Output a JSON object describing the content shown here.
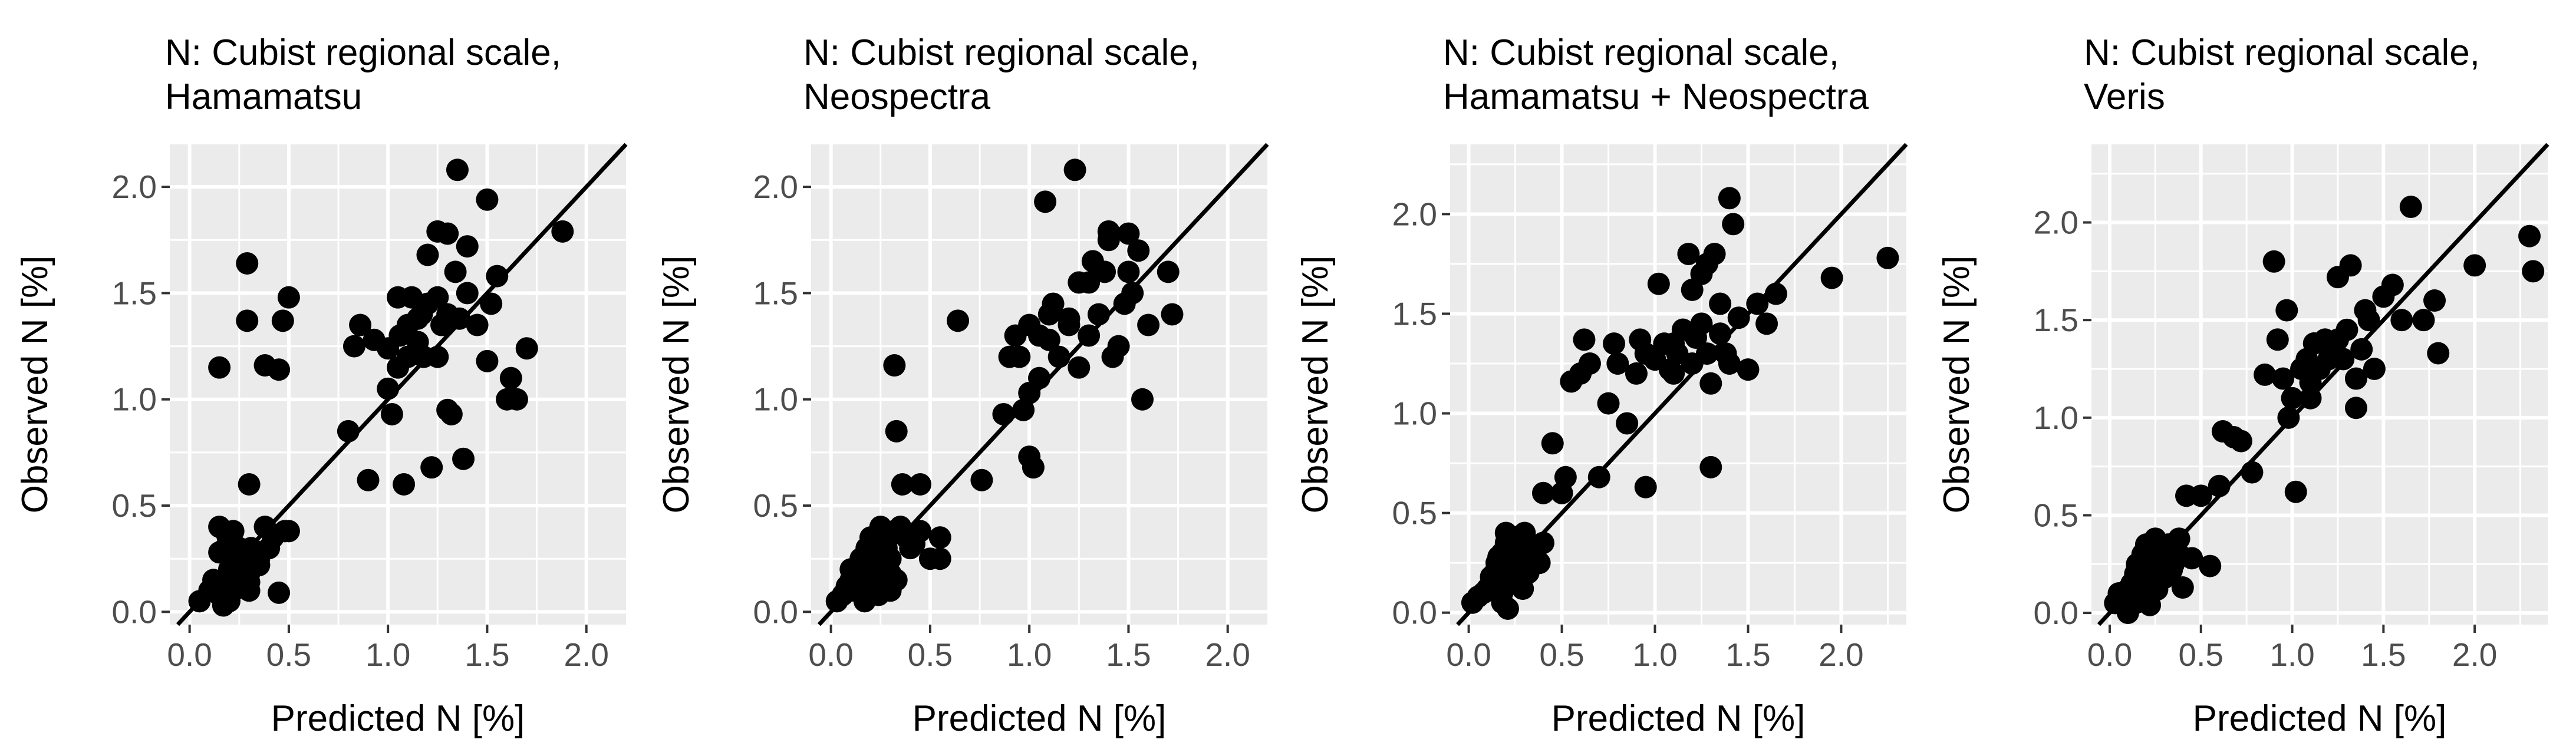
{
  "colors": {
    "panel_bg": "#ebebeb",
    "grid_major": "#ffffff",
    "point": "#000000",
    "line": "#000000",
    "tick_text": "#4d4d4d"
  },
  "chart_data": [
    {
      "type": "scatter",
      "title_lines": [
        "N: Cubist regional scale,",
        "Hamamatsu"
      ],
      "xlabel": "Predicted N [%]",
      "ylabel": "Observed N [%]",
      "xlim": [
        -0.1,
        2.2
      ],
      "ylim": [
        -0.06,
        2.2
      ],
      "xticks": [
        0.0,
        0.5,
        1.0,
        1.5,
        2.0
      ],
      "xtick_labels": [
        "0.0",
        "0.5",
        "1.0",
        "1.5",
        "2.0"
      ],
      "yticks": [
        0.0,
        0.5,
        1.0,
        1.5,
        2.0
      ],
      "ytick_labels": [
        "0.0",
        "0.5",
        "1.0",
        "1.5",
        "2.0"
      ],
      "reference_line": "1:1",
      "x": [
        0.05,
        0.1,
        0.12,
        0.15,
        0.18,
        0.2,
        0.22,
        0.25,
        0.28,
        0.3,
        0.15,
        0.18,
        0.2,
        0.22,
        0.25,
        0.3,
        0.35,
        0.38,
        0.4,
        0.42,
        0.45,
        0.48,
        0.5,
        0.35,
        0.3,
        0.25,
        0.22,
        0.2,
        0.17,
        0.15,
        0.19,
        0.23,
        0.27,
        0.31,
        0.33,
        0.28,
        0.3,
        0.15,
        0.29,
        0.38,
        0.45,
        0.47,
        0.5,
        0.29,
        0.8,
        0.83,
        0.86,
        0.9,
        0.93,
        1.0,
        1.02,
        1.05,
        1.06,
        1.08,
        1.1,
        1.12,
        1.15,
        1.17,
        1.2,
        1.22,
        1.25,
        1.27,
        1.3,
        1.32,
        1.34,
        1.36,
        1.38,
        1.4,
        1.45,
        1.5,
        1.52,
        1.55,
        1.6,
        1.62,
        1.65,
        1.7,
        1.88,
        1.2,
        1.25,
        1.3,
        1.35,
        1.4,
        1.1,
        1.15,
        1.5,
        1.3,
        1.25,
        1.18,
        1.05,
        1.0
      ],
      "y": [
        0.05,
        0.1,
        0.15,
        0.08,
        0.12,
        0.2,
        0.25,
        0.3,
        0.22,
        0.18,
        0.4,
        0.3,
        0.35,
        0.38,
        0.15,
        0.1,
        0.25,
        0.4,
        0.3,
        0.35,
        0.09,
        0.38,
        0.38,
        0.22,
        0.14,
        0.18,
        0.1,
        0.05,
        0.03,
        0.28,
        0.36,
        0.2,
        0.16,
        0.3,
        0.25,
        0.12,
        0.6,
        1.15,
        1.64,
        1.16,
        1.14,
        1.37,
        1.48,
        1.37,
        0.85,
        1.25,
        1.35,
        0.62,
        1.28,
        1.24,
        0.93,
        1.48,
        1.3,
        0.6,
        1.2,
        1.48,
        1.38,
        1.4,
        1.45,
        0.68,
        1.2,
        1.35,
        0.95,
        0.93,
        1.6,
        1.38,
        0.72,
        1.5,
        1.35,
        1.94,
        1.45,
        1.58,
        1.0,
        1.1,
        1.0,
        1.24,
        1.79,
        1.68,
        1.79,
        1.78,
        2.08,
        1.72,
        1.35,
        1.27,
        1.18,
        1.4,
        1.48,
        1.2,
        1.15,
        1.05
      ]
    },
    {
      "type": "scatter",
      "title_lines": [
        "N: Cubist regional scale,",
        "Neospectra"
      ],
      "xlabel": "Predicted N [%]",
      "ylabel": "Observed N [%]",
      "xlim": [
        -0.1,
        2.2
      ],
      "ylim": [
        -0.06,
        2.2
      ],
      "xticks": [
        0.0,
        0.5,
        1.0,
        1.5,
        2.0
      ],
      "xtick_labels": [
        "0.0",
        "0.5",
        "1.0",
        "1.5",
        "2.0"
      ],
      "yticks": [
        0.0,
        0.5,
        1.0,
        1.5,
        2.0
      ],
      "ytick_labels": [
        "0.0",
        "0.5",
        "1.0",
        "1.5",
        "2.0"
      ],
      "reference_line": "1:1",
      "x": [
        0.03,
        0.06,
        0.08,
        0.1,
        0.12,
        0.14,
        0.15,
        0.17,
        0.18,
        0.2,
        0.2,
        0.22,
        0.22,
        0.24,
        0.25,
        0.25,
        0.27,
        0.28,
        0.3,
        0.3,
        0.32,
        0.35,
        0.38,
        0.4,
        0.42,
        0.45,
        0.5,
        0.55,
        0.55,
        0.1,
        0.14,
        0.18,
        0.21,
        0.24,
        0.27,
        0.3,
        0.33,
        0.16,
        0.36,
        0.32,
        0.33,
        0.45,
        0.64,
        0.76,
        0.87,
        0.9,
        0.93,
        0.97,
        1.0,
        1.0,
        1.02,
        1.05,
        1.08,
        1.1,
        1.12,
        1.15,
        1.2,
        1.23,
        1.25,
        1.3,
        1.32,
        1.35,
        1.38,
        1.4,
        1.42,
        1.45,
        1.48,
        1.5,
        1.52,
        1.55,
        1.57,
        1.6,
        1.7,
        1.72,
        1.0,
        1.1,
        1.25,
        1.3,
        1.2,
        1.4,
        1.5,
        0.95,
        1.05
      ],
      "y": [
        0.05,
        0.08,
        0.12,
        0.15,
        0.1,
        0.2,
        0.25,
        0.05,
        0.3,
        0.35,
        0.1,
        0.15,
        0.22,
        0.28,
        0.2,
        0.4,
        0.35,
        0.3,
        0.25,
        0.1,
        0.38,
        0.4,
        0.35,
        0.3,
        0.32,
        0.38,
        0.25,
        0.35,
        0.25,
        0.2,
        0.18,
        0.12,
        0.3,
        0.08,
        0.22,
        0.18,
        0.15,
        0.24,
        0.6,
        1.16,
        0.85,
        0.6,
        1.37,
        0.62,
        0.93,
        1.2,
        1.3,
        0.95,
        0.73,
        1.35,
        0.68,
        1.3,
        1.93,
        1.4,
        1.45,
        1.2,
        1.35,
        2.08,
        1.15,
        1.3,
        1.65,
        1.4,
        1.6,
        1.79,
        1.2,
        1.25,
        1.45,
        1.78,
        1.5,
        1.7,
        1.0,
        1.35,
        1.6,
        1.4,
        1.03,
        1.28,
        1.55,
        1.55,
        1.38,
        1.75,
        1.6,
        1.2,
        1.1
      ]
    },
    {
      "type": "scatter",
      "title_lines": [
        "N: Cubist regional scale,",
        "Hamamatsu + Neospectra"
      ],
      "xlabel": "Predicted N [%]",
      "ylabel": "Observed N [%]",
      "xlim": [
        -0.1,
        2.35
      ],
      "ylim": [
        -0.06,
        2.35
      ],
      "xticks": [
        0.0,
        0.5,
        1.0,
        1.5,
        2.0
      ],
      "xtick_labels": [
        "0.0",
        "0.5",
        "1.0",
        "1.5",
        "2.0"
      ],
      "yticks": [
        0.0,
        0.5,
        1.0,
        1.5,
        2.0
      ],
      "ytick_labels": [
        "0.0",
        "0.5",
        "1.0",
        "1.5",
        "2.0"
      ],
      "reference_line": "1:1",
      "x": [
        0.02,
        0.05,
        0.08,
        0.1,
        0.12,
        0.14,
        0.15,
        0.16,
        0.18,
        0.18,
        0.2,
        0.2,
        0.22,
        0.22,
        0.24,
        0.25,
        0.25,
        0.27,
        0.28,
        0.3,
        0.3,
        0.32,
        0.35,
        0.38,
        0.4,
        0.15,
        0.12,
        0.18,
        0.21,
        0.23,
        0.26,
        0.29,
        0.33,
        0.36,
        0.2,
        0.4,
        0.45,
        0.5,
        0.52,
        0.55,
        0.6,
        0.62,
        0.65,
        0.7,
        0.75,
        0.78,
        0.8,
        0.85,
        0.9,
        0.92,
        0.95,
        1.0,
        1.02,
        1.05,
        1.08,
        1.1,
        1.12,
        1.15,
        1.18,
        1.2,
        1.22,
        1.25,
        1.28,
        1.3,
        1.32,
        1.35,
        1.38,
        1.4,
        1.42,
        1.45,
        1.5,
        1.55,
        1.6,
        1.65,
        1.95,
        2.25,
        1.25,
        1.3,
        1.35,
        1.4,
        1.2,
        1.28,
        1.1,
        0.95
      ],
      "y": [
        0.05,
        0.08,
        0.1,
        0.12,
        0.15,
        0.2,
        0.25,
        0.28,
        0.3,
        0.1,
        0.35,
        0.22,
        0.3,
        0.15,
        0.38,
        0.2,
        0.32,
        0.28,
        0.25,
        0.35,
        0.4,
        0.2,
        0.3,
        0.25,
        0.35,
        0.12,
        0.18,
        0.05,
        0.02,
        0.16,
        0.22,
        0.12,
        0.3,
        0.28,
        0.4,
        0.6,
        0.85,
        0.6,
        0.68,
        1.16,
        1.2,
        1.37,
        1.25,
        0.68,
        1.05,
        1.35,
        1.25,
        0.95,
        1.2,
        1.37,
        1.3,
        1.27,
        1.65,
        1.35,
        1.22,
        1.2,
        1.3,
        1.42,
        1.8,
        1.25,
        1.38,
        1.45,
        1.3,
        1.15,
        1.8,
        1.55,
        1.3,
        2.08,
        1.95,
        1.48,
        1.22,
        1.55,
        1.45,
        1.6,
        1.68,
        1.78,
        1.7,
        0.73,
        1.4,
        1.25,
        1.62,
        1.75,
        1.35,
        0.63
      ]
    },
    {
      "type": "scatter",
      "title_lines": [
        "N: Cubist regional scale,",
        "Veris"
      ],
      "xlabel": "Predicted N [%]",
      "ylabel": "Observed N [%]",
      "xlim": [
        -0.1,
        2.4
      ],
      "ylim": [
        -0.06,
        2.4
      ],
      "xticks": [
        0.0,
        0.5,
        1.0,
        1.5,
        2.0
      ],
      "xtick_labels": [
        "0.0",
        "0.5",
        "1.0",
        "1.5",
        "2.0"
      ],
      "yticks": [
        0.0,
        0.5,
        1.0,
        1.5,
        2.0
      ],
      "ytick_labels": [
        "0.0",
        "0.5",
        "1.0",
        "1.5",
        "2.0"
      ],
      "reference_line": "1:1",
      "x": [
        0.03,
        0.05,
        0.08,
        0.1,
        0.12,
        0.14,
        0.15,
        0.16,
        0.18,
        0.2,
        0.2,
        0.22,
        0.22,
        0.24,
        0.25,
        0.27,
        0.3,
        0.32,
        0.35,
        0.38,
        0.4,
        0.42,
        0.45,
        0.1,
        0.14,
        0.18,
        0.22,
        0.26,
        0.3,
        0.34,
        0.38,
        0.16,
        0.28,
        0.5,
        0.55,
        0.6,
        0.62,
        0.68,
        0.72,
        0.78,
        0.85,
        0.9,
        0.92,
        0.95,
        0.97,
        1.0,
        1.02,
        1.05,
        1.08,
        1.1,
        1.12,
        1.15,
        1.18,
        1.2,
        1.25,
        1.28,
        1.3,
        1.32,
        1.35,
        1.38,
        1.4,
        1.42,
        1.45,
        1.5,
        1.55,
        1.6,
        1.65,
        1.72,
        1.78,
        1.8,
        2.0,
        2.3,
        2.32,
        1.35,
        1.25,
        0.98,
        1.1
      ],
      "y": [
        0.05,
        0.1,
        0.08,
        0.12,
        0.15,
        0.2,
        0.25,
        0.18,
        0.3,
        0.1,
        0.35,
        0.22,
        0.28,
        0.15,
        0.38,
        0.3,
        0.2,
        0.35,
        0.25,
        0.38,
        0.13,
        0.6,
        0.28,
        0.0,
        0.05,
        0.08,
        0.04,
        0.12,
        0.18,
        0.22,
        0.3,
        0.15,
        0.25,
        0.6,
        0.24,
        0.65,
        0.93,
        0.9,
        0.88,
        0.72,
        1.22,
        1.8,
        1.4,
        1.2,
        1.55,
        1.1,
        0.62,
        1.25,
        1.3,
        1.18,
        1.38,
        1.25,
        1.4,
        1.3,
        1.72,
        1.3,
        1.45,
        1.78,
        1.2,
        1.35,
        1.55,
        1.5,
        1.25,
        1.62,
        1.68,
        1.5,
        2.08,
        1.5,
        1.6,
        1.33,
        1.78,
        1.93,
        1.75,
        1.05,
        1.4,
        1.0,
        1.1
      ]
    }
  ]
}
